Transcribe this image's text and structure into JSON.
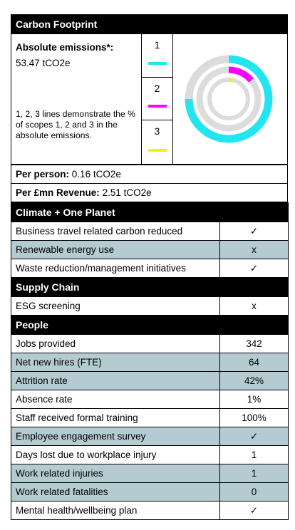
{
  "carbon": {
    "title": "Carbon Footprint",
    "abs_label": "Absolute emissions*:",
    "abs_value": "53.47 tCO2e",
    "note": "1, 2, 3 lines demonstrate the % of scopes 1, 2 and 3 in the absolute emissions.",
    "scopes": [
      {
        "label": "1",
        "color": "#22e5f0",
        "fraction": 0.75
      },
      {
        "label": "2",
        "color": "#ff00ff",
        "fraction": 0.14
      },
      {
        "label": "3",
        "color": "#f5f000",
        "fraction": 0.02
      }
    ],
    "ring_track_color": "#dcdcdc",
    "per_person_label": "Per person:",
    "per_person_value": "0.16 tCO2e",
    "per_revenue_label": "Per £mn Revenue:",
    "per_revenue_value": "2.51 tCO2e"
  },
  "sections": {
    "climate": {
      "title": "Climate + One Planet",
      "rows": [
        {
          "label": "Business travel related carbon reduced",
          "value": "✓"
        },
        {
          "label": "Renewable energy use",
          "value": "x"
        },
        {
          "label": "Waste reduction/management initiatives",
          "value": "✓"
        }
      ]
    },
    "supply": {
      "title": "Supply Chain",
      "rows": [
        {
          "label": "ESG screening",
          "value": "x"
        }
      ]
    },
    "people": {
      "title": "People",
      "rows": [
        {
          "label": "Jobs provided",
          "value": "342"
        },
        {
          "label": "Net new hires (FTE)",
          "value": "64"
        },
        {
          "label": "Attrition rate",
          "value": "42%"
        },
        {
          "label": "Absence rate",
          "value": "1%"
        },
        {
          "label": "Staff received formal training",
          "value": "100%"
        },
        {
          "label": "Employee engagement survey",
          "value": "✓"
        },
        {
          "label": "Days lost due to workplace injury",
          "value": "1"
        },
        {
          "label": "Work related injuries",
          "value": "1"
        },
        {
          "label": "Work related fatalities",
          "value": "0"
        },
        {
          "label": "Mental health/wellbeing plan",
          "value": "✓"
        }
      ]
    }
  }
}
